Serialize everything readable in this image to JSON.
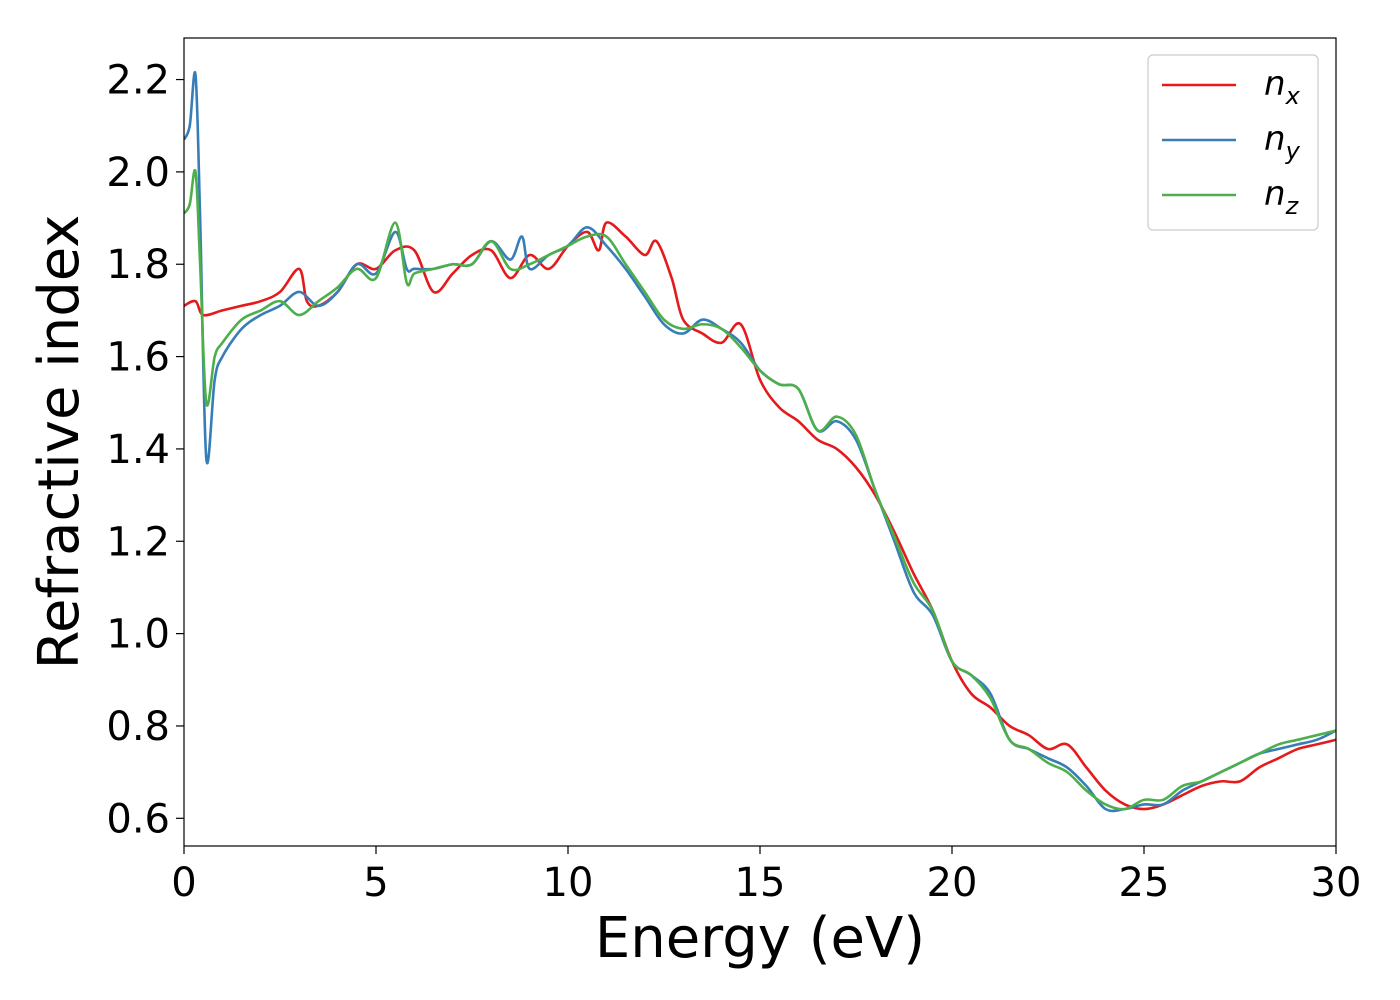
{
  "chart_data": {
    "type": "line",
    "title": "",
    "xlabel": "Energy (eV)",
    "ylabel": "Refractive index",
    "xlim": [
      0,
      30
    ],
    "ylim": [
      0.54,
      2.29
    ],
    "xticks": [
      0,
      5,
      10,
      15,
      20,
      25,
      30
    ],
    "yticks": [
      0.6,
      0.8,
      1.0,
      1.2,
      1.4,
      1.6,
      1.8,
      2.0,
      2.2
    ],
    "xtick_labels": [
      "0",
      "5",
      "10",
      "15",
      "20",
      "25",
      "30"
    ],
    "ytick_labels": [
      "0.6",
      "0.8",
      "1.0",
      "1.2",
      "1.4",
      "1.6",
      "1.8",
      "2.0",
      "2.2"
    ],
    "grid": false,
    "legend": {
      "placement": "top-right",
      "entries": [
        {
          "base": "n",
          "sub": "x",
          "color": "#e41a1c"
        },
        {
          "base": "n",
          "sub": "y",
          "color": "#377eb8"
        },
        {
          "base": "n",
          "sub": "z",
          "color": "#4daf4a"
        }
      ]
    },
    "series": [
      {
        "name": "nx",
        "color": "#e41a1c",
        "points": [
          [
            0,
            1.71
          ],
          [
            0.3,
            1.72
          ],
          [
            0.5,
            1.69
          ],
          [
            1,
            1.7
          ],
          [
            1.5,
            1.71
          ],
          [
            2,
            1.72
          ],
          [
            2.5,
            1.74
          ],
          [
            3,
            1.79
          ],
          [
            3.2,
            1.72
          ],
          [
            3.5,
            1.71
          ],
          [
            4,
            1.74
          ],
          [
            4.5,
            1.8
          ],
          [
            5,
            1.79
          ],
          [
            5.5,
            1.83
          ],
          [
            6,
            1.83
          ],
          [
            6.5,
            1.74
          ],
          [
            7,
            1.78
          ],
          [
            7.5,
            1.82
          ],
          [
            8,
            1.83
          ],
          [
            8.5,
            1.77
          ],
          [
            9,
            1.82
          ],
          [
            9.5,
            1.79
          ],
          [
            10,
            1.84
          ],
          [
            10.5,
            1.87
          ],
          [
            10.8,
            1.83
          ],
          [
            11,
            1.89
          ],
          [
            11.5,
            1.86
          ],
          [
            12,
            1.82
          ],
          [
            12.3,
            1.85
          ],
          [
            12.7,
            1.77
          ],
          [
            13,
            1.68
          ],
          [
            13.5,
            1.65
          ],
          [
            14,
            1.63
          ],
          [
            14.5,
            1.67
          ],
          [
            15,
            1.55
          ],
          [
            15.5,
            1.49
          ],
          [
            16,
            1.46
          ],
          [
            16.5,
            1.42
          ],
          [
            17,
            1.4
          ],
          [
            17.5,
            1.36
          ],
          [
            18,
            1.3
          ],
          [
            18.5,
            1.22
          ],
          [
            19,
            1.13
          ],
          [
            19.5,
            1.05
          ],
          [
            20,
            0.94
          ],
          [
            20.5,
            0.87
          ],
          [
            21,
            0.84
          ],
          [
            21.5,
            0.8
          ],
          [
            22,
            0.78
          ],
          [
            22.5,
            0.75
          ],
          [
            23,
            0.76
          ],
          [
            23.5,
            0.71
          ],
          [
            24,
            0.66
          ],
          [
            24.5,
            0.63
          ],
          [
            25,
            0.62
          ],
          [
            25.5,
            0.63
          ],
          [
            26,
            0.65
          ],
          [
            26.5,
            0.67
          ],
          [
            27,
            0.68
          ],
          [
            27.5,
            0.68
          ],
          [
            28,
            0.71
          ],
          [
            28.5,
            0.73
          ],
          [
            29,
            0.75
          ],
          [
            29.5,
            0.76
          ],
          [
            30,
            0.77
          ]
        ]
      },
      {
        "name": "ny",
        "color": "#377eb8",
        "points": [
          [
            0,
            2.07
          ],
          [
            0.15,
            2.1
          ],
          [
            0.3,
            2.21
          ],
          [
            0.42,
            1.9
          ],
          [
            0.58,
            1.38
          ],
          [
            0.8,
            1.55
          ],
          [
            1,
            1.6
          ],
          [
            1.5,
            1.66
          ],
          [
            2,
            1.69
          ],
          [
            2.5,
            1.71
          ],
          [
            3,
            1.74
          ],
          [
            3.5,
            1.71
          ],
          [
            4,
            1.74
          ],
          [
            4.5,
            1.8
          ],
          [
            5,
            1.78
          ],
          [
            5.5,
            1.87
          ],
          [
            5.8,
            1.79
          ],
          [
            6,
            1.79
          ],
          [
            6.5,
            1.79
          ],
          [
            7,
            1.8
          ],
          [
            7.5,
            1.8
          ],
          [
            8,
            1.85
          ],
          [
            8.5,
            1.81
          ],
          [
            8.8,
            1.86
          ],
          [
            9,
            1.79
          ],
          [
            9.5,
            1.82
          ],
          [
            10,
            1.84
          ],
          [
            10.5,
            1.88
          ],
          [
            11,
            1.84
          ],
          [
            11.5,
            1.79
          ],
          [
            12,
            1.73
          ],
          [
            12.5,
            1.67
          ],
          [
            13,
            1.65
          ],
          [
            13.5,
            1.68
          ],
          [
            14,
            1.66
          ],
          [
            14.5,
            1.63
          ],
          [
            15,
            1.57
          ],
          [
            15.5,
            1.54
          ],
          [
            16,
            1.53
          ],
          [
            16.5,
            1.44
          ],
          [
            17,
            1.46
          ],
          [
            17.5,
            1.42
          ],
          [
            18,
            1.31
          ],
          [
            18.5,
            1.2
          ],
          [
            19,
            1.09
          ],
          [
            19.5,
            1.04
          ],
          [
            20,
            0.94
          ],
          [
            20.5,
            0.91
          ],
          [
            21,
            0.87
          ],
          [
            21.5,
            0.77
          ],
          [
            22,
            0.75
          ],
          [
            22.5,
            0.73
          ],
          [
            23,
            0.71
          ],
          [
            23.5,
            0.67
          ],
          [
            24,
            0.62
          ],
          [
            24.5,
            0.62
          ],
          [
            25,
            0.63
          ],
          [
            25.5,
            0.63
          ],
          [
            26,
            0.66
          ],
          [
            26.5,
            0.68
          ],
          [
            27,
            0.7
          ],
          [
            27.5,
            0.72
          ],
          [
            28,
            0.74
          ],
          [
            28.5,
            0.75
          ],
          [
            29,
            0.76
          ],
          [
            29.5,
            0.77
          ],
          [
            30,
            0.79
          ]
        ]
      },
      {
        "name": "nz",
        "color": "#4daf4a",
        "points": [
          [
            0,
            1.91
          ],
          [
            0.15,
            1.93
          ],
          [
            0.3,
            2.0
          ],
          [
            0.42,
            1.8
          ],
          [
            0.58,
            1.5
          ],
          [
            0.8,
            1.6
          ],
          [
            1,
            1.63
          ],
          [
            1.5,
            1.68
          ],
          [
            2,
            1.7
          ],
          [
            2.5,
            1.72
          ],
          [
            3,
            1.69
          ],
          [
            3.5,
            1.72
          ],
          [
            4,
            1.75
          ],
          [
            4.5,
            1.79
          ],
          [
            5,
            1.77
          ],
          [
            5.5,
            1.89
          ],
          [
            5.8,
            1.76
          ],
          [
            6,
            1.78
          ],
          [
            6.5,
            1.79
          ],
          [
            7,
            1.8
          ],
          [
            7.5,
            1.8
          ],
          [
            8,
            1.85
          ],
          [
            8.5,
            1.79
          ],
          [
            9,
            1.8
          ],
          [
            9.5,
            1.82
          ],
          [
            10,
            1.84
          ],
          [
            10.5,
            1.86
          ],
          [
            11,
            1.86
          ],
          [
            11.5,
            1.8
          ],
          [
            12,
            1.74
          ],
          [
            12.5,
            1.68
          ],
          [
            13,
            1.66
          ],
          [
            13.5,
            1.67
          ],
          [
            14,
            1.66
          ],
          [
            14.5,
            1.62
          ],
          [
            15,
            1.57
          ],
          [
            15.5,
            1.54
          ],
          [
            16,
            1.53
          ],
          [
            16.5,
            1.44
          ],
          [
            17,
            1.47
          ],
          [
            17.5,
            1.43
          ],
          [
            18,
            1.31
          ],
          [
            18.5,
            1.21
          ],
          [
            19,
            1.11
          ],
          [
            19.5,
            1.05
          ],
          [
            20,
            0.94
          ],
          [
            20.5,
            0.91
          ],
          [
            21,
            0.86
          ],
          [
            21.5,
            0.77
          ],
          [
            22,
            0.75
          ],
          [
            22.5,
            0.72
          ],
          [
            23,
            0.7
          ],
          [
            23.5,
            0.66
          ],
          [
            24,
            0.63
          ],
          [
            24.5,
            0.62
          ],
          [
            25,
            0.64
          ],
          [
            25.5,
            0.64
          ],
          [
            26,
            0.67
          ],
          [
            26.5,
            0.68
          ],
          [
            27,
            0.7
          ],
          [
            27.5,
            0.72
          ],
          [
            28,
            0.74
          ],
          [
            28.5,
            0.76
          ],
          [
            29,
            0.77
          ],
          [
            29.5,
            0.78
          ],
          [
            30,
            0.79
          ]
        ]
      }
    ]
  }
}
